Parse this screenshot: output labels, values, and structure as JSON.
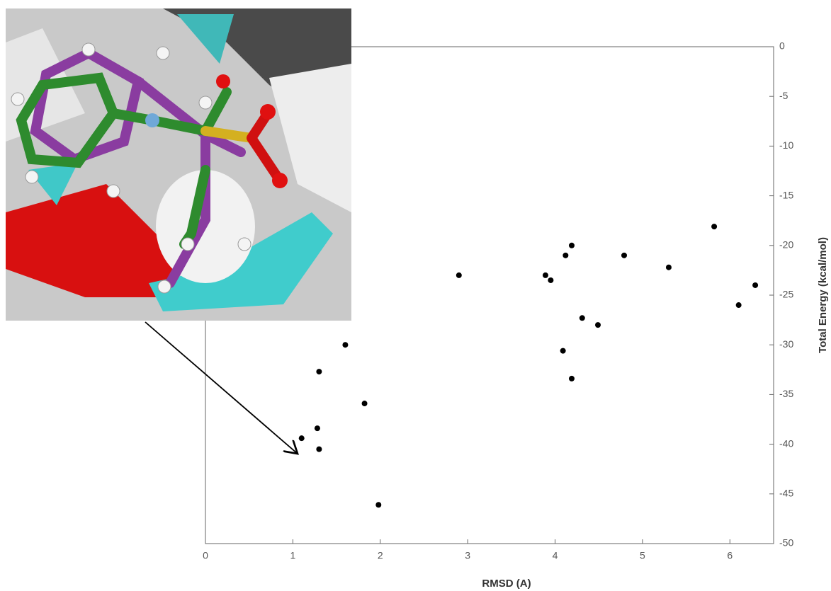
{
  "chart_data": {
    "type": "scatter",
    "x_label": "RMSD (A)",
    "y_label": "Total Energy (kcal/mol)",
    "x": [
      1.1,
      1.28,
      1.3,
      1.3,
      1.6,
      1.82,
      1.98,
      2.9,
      3.89,
      3.95,
      4.12,
      4.19,
      4.31,
      4.49,
      4.09,
      4.19,
      4.79,
      5.3,
      5.82,
      6.1,
      6.29
    ],
    "values": [
      -39.4,
      -38.4,
      -40.5,
      -32.7,
      -30,
      -35.9,
      -46.1,
      -23,
      -23,
      -23.5,
      -21,
      -20,
      -27.3,
      -28,
      -30.6,
      -33.4,
      -21,
      -22.2,
      -18.1,
      -26,
      -24
    ],
    "color": "#000000",
    "xlim": [
      0,
      6.5
    ],
    "xticks": [
      0,
      1,
      2,
      3,
      4,
      5,
      6
    ],
    "ylim": [
      -50,
      0
    ],
    "yticks": [
      0,
      -5,
      -10,
      -15,
      -20,
      -25,
      -30,
      -35,
      -40,
      -45,
      -50
    ],
    "y_axis_side": "right",
    "grid": false
  }
}
